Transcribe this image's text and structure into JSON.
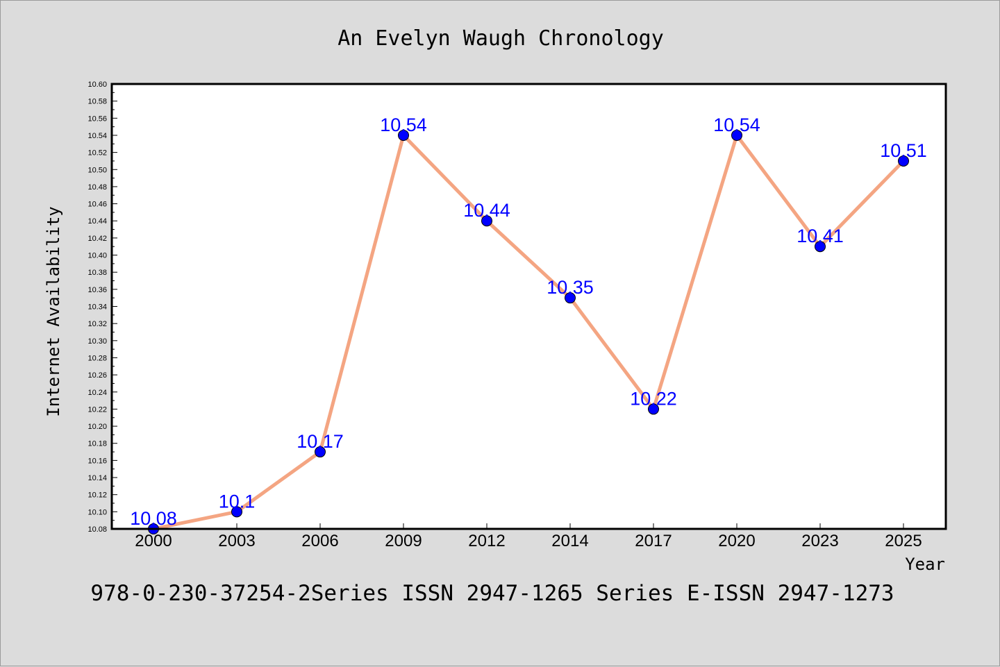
{
  "chart_data": {
    "type": "line",
    "title": "An Evelyn Waugh Chronology",
    "xlabel": "Year",
    "ylabel": "Internet Availability",
    "categories": [
      "2000",
      "2003",
      "2006",
      "2009",
      "2012",
      "2014",
      "2017",
      "2020",
      "2023",
      "2025"
    ],
    "series": [
      {
        "values": [
          10.08,
          10.1,
          10.17,
          10.54,
          10.44,
          10.35,
          10.22,
          10.54,
          10.41,
          10.51
        ],
        "labels": [
          "10.08",
          "10.1",
          "10.17",
          "10.54",
          "10.44",
          "10.35",
          "10.22",
          "10.54",
          "10.41",
          "10.51"
        ],
        "line_color": "#f4a582",
        "marker_color": "#0000ff"
      }
    ],
    "ylim": [
      10.08,
      10.6
    ],
    "yticks": [
      "10.08",
      "10.10",
      "10.12",
      "10.14",
      "10.16",
      "10.18",
      "10.20",
      "10.22",
      "10.24",
      "10.26",
      "10.28",
      "10.30",
      "10.32",
      "10.34",
      "10.36",
      "10.38",
      "10.40",
      "10.42",
      "10.44",
      "10.46",
      "10.48",
      "10.50",
      "10.52",
      "10.54",
      "10.56",
      "10.58",
      "10.60"
    ],
    "grid": false,
    "legend": "none",
    "label_color": "#0000ff",
    "background": "#dcdcdc",
    "plot_background": "#ffffff"
  },
  "footer": "978-0-230-37254-2Series ISSN 2947-1265 Series E-ISSN 2947-1273"
}
